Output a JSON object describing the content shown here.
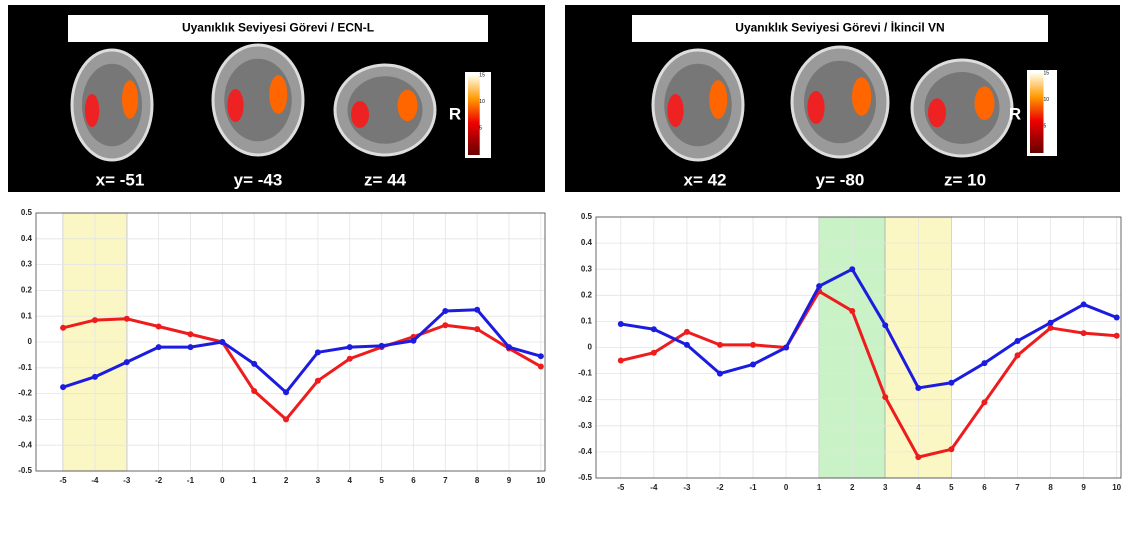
{
  "chart_data": [
    {
      "type": "line",
      "title": "Uyanıklık Seviyesi Görevi / ECN-L",
      "annotations": [
        "x= -51",
        "y= -43",
        "z= 44",
        "R"
      ],
      "colorbar_ticks": [
        5,
        10,
        15
      ],
      "x": [
        -5,
        -4,
        -3,
        -2,
        -1,
        0,
        1,
        2,
        3,
        4,
        5,
        6,
        7,
        8,
        9,
        10
      ],
      "series": [
        {
          "color": "#ee1c1c",
          "values": [
            0.055,
            0.085,
            0.09,
            0.06,
            0.03,
            0.0,
            -0.19,
            -0.3,
            -0.15,
            -0.065,
            -0.02,
            0.02,
            0.065,
            0.05,
            -0.025,
            -0.095
          ]
        },
        {
          "color": "#1c1ce0",
          "values": [
            -0.175,
            -0.135,
            -0.078,
            -0.02,
            -0.02,
            0.0,
            -0.085,
            -0.195,
            -0.04,
            -0.02,
            -0.015,
            0.005,
            0.12,
            0.125,
            -0.02,
            -0.055
          ]
        }
      ],
      "highlights": [
        {
          "from": -5,
          "to": -3,
          "color": "#fbf7c4"
        }
      ],
      "xlim": [
        -5.85,
        10.13
      ],
      "xticks": [
        -5,
        -4,
        -3,
        -2,
        -1,
        0,
        1,
        2,
        3,
        4,
        5,
        6,
        7,
        8,
        9,
        10
      ],
      "ylim": [
        -0.5,
        0.5
      ],
      "yticks": [
        -0.5,
        -0.4,
        -0.3,
        -0.2,
        -0.1,
        0,
        0.1,
        0.2,
        0.3,
        0.4,
        0.5
      ],
      "grid": true
    },
    {
      "type": "line",
      "title": "Uyanıklık Seviyesi Görevi / İkincil VN",
      "annotations": [
        "x= 42",
        "y= -80",
        "z= 10",
        "R"
      ],
      "colorbar_ticks": [
        5,
        10,
        15
      ],
      "x": [
        -5,
        -4,
        -3,
        -2,
        -1,
        0,
        1,
        2,
        3,
        4,
        5,
        6,
        7,
        8,
        9,
        10
      ],
      "series": [
        {
          "color": "#ee1c1c",
          "values": [
            -0.05,
            -0.02,
            0.06,
            0.01,
            0.01,
            0.0,
            0.215,
            0.14,
            -0.19,
            -0.42,
            -0.39,
            -0.21,
            -0.03,
            0.075,
            0.055,
            0.045
          ]
        },
        {
          "color": "#1c1ce0",
          "values": [
            0.09,
            0.07,
            0.01,
            -0.1,
            -0.065,
            0.0,
            0.235,
            0.3,
            0.085,
            -0.155,
            -0.135,
            -0.06,
            0.025,
            0.095,
            0.165,
            0.115
          ]
        }
      ],
      "highlights": [
        {
          "from": 1,
          "to": 3,
          "color": "#c9f2c6"
        },
        {
          "from": 3,
          "to": 5,
          "color": "#fbf7c4"
        }
      ],
      "xlim": [
        -5.75,
        10.13
      ],
      "xticks": [
        -5,
        -4,
        -3,
        -2,
        -1,
        0,
        1,
        2,
        3,
        4,
        5,
        6,
        7,
        8,
        9,
        10
      ],
      "ylim": [
        -0.5,
        0.5
      ],
      "yticks": [
        -0.5,
        -0.4,
        -0.3,
        -0.2,
        -0.1,
        0,
        0.1,
        0.2,
        0.3,
        0.4,
        0.5
      ],
      "grid": true
    }
  ]
}
